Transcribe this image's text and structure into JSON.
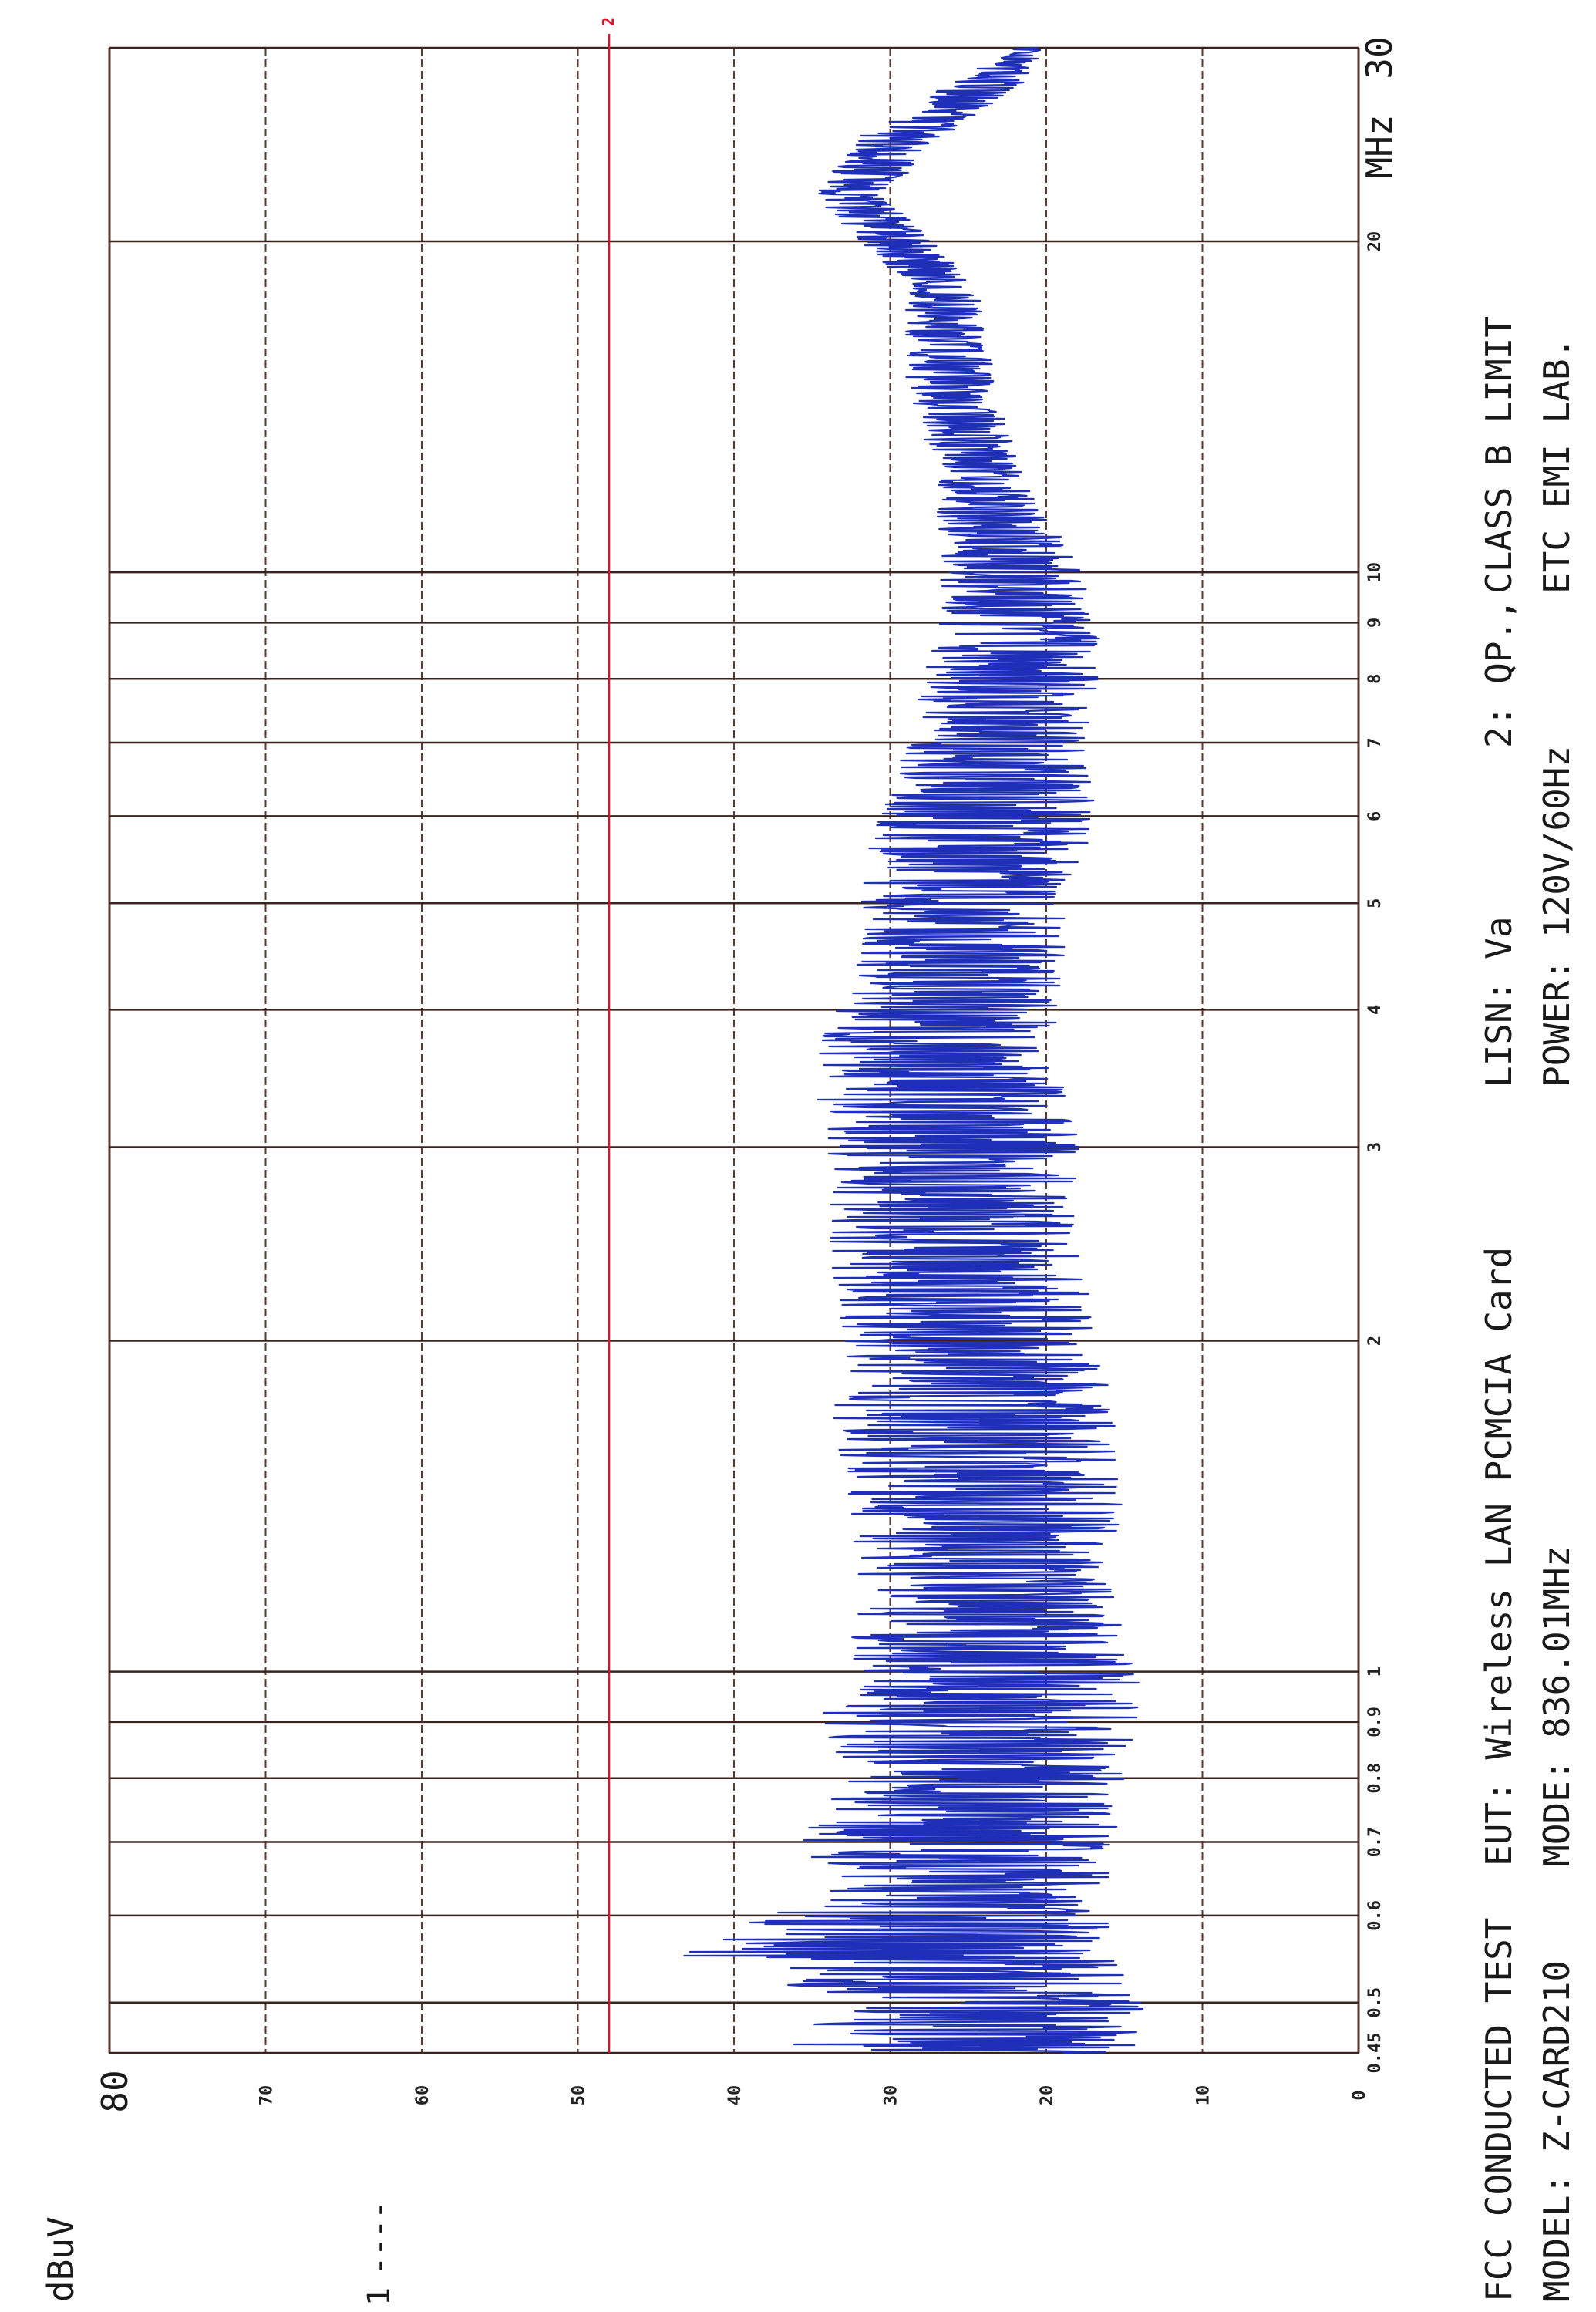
{
  "chart_data": {
    "type": "line",
    "orientation": "rotated-90-ccw",
    "ylabel": "dBuV",
    "ylabel_top": "80",
    "ylim": [
      0,
      80
    ],
    "y_ticks": [
      "0",
      "10",
      "20",
      "30",
      "40",
      "50",
      "60",
      "70"
    ],
    "xscale": "log",
    "xlim": [
      0.45,
      30
    ],
    "x_unit": "MHz",
    "x_end_label": "30",
    "x_ticks": [
      {
        "value": 0.45,
        "label": "0.45"
      },
      {
        "value": 0.5,
        "label": "0.5"
      },
      {
        "value": 0.6,
        "label": "0.6"
      },
      {
        "value": 0.7,
        "label": "0.7"
      },
      {
        "value": 0.8,
        "label": "0.8"
      },
      {
        "value": 0.9,
        "label": "0.9"
      },
      {
        "value": 1,
        "label": "1"
      },
      {
        "value": 2,
        "label": "2"
      },
      {
        "value": 3,
        "label": "3"
      },
      {
        "value": 4,
        "label": "4"
      },
      {
        "value": 5,
        "label": "5"
      },
      {
        "value": 6,
        "label": "6"
      },
      {
        "value": 7,
        "label": "7"
      },
      {
        "value": 8,
        "label": "8"
      },
      {
        "value": 9,
        "label": "9"
      },
      {
        "value": 10,
        "label": "10"
      },
      {
        "value": 20,
        "label": "20"
      }
    ],
    "grid": true,
    "limit_line": {
      "label": "2",
      "value": 48,
      "color": "#e0102a"
    },
    "trace_color": "#1f2fb8",
    "series": [
      {
        "name": "",
        "envelope": [
          {
            "x": 0.45,
            "min": 13,
            "max": 37
          },
          {
            "x": 0.48,
            "min": 12,
            "max": 35
          },
          {
            "x": 0.5,
            "min": 13,
            "max": 32
          },
          {
            "x": 0.55,
            "min": 14,
            "max": 44
          },
          {
            "x": 0.6,
            "min": 15,
            "max": 38
          },
          {
            "x": 0.65,
            "min": 15,
            "max": 34
          },
          {
            "x": 0.7,
            "min": 14,
            "max": 36
          },
          {
            "x": 0.8,
            "min": 14,
            "max": 33
          },
          {
            "x": 0.9,
            "min": 13,
            "max": 35
          },
          {
            "x": 1.0,
            "min": 13,
            "max": 33
          },
          {
            "x": 1.2,
            "min": 15,
            "max": 32
          },
          {
            "x": 1.5,
            "min": 14,
            "max": 33
          },
          {
            "x": 1.8,
            "min": 15,
            "max": 34
          },
          {
            "x": 2.0,
            "min": 16,
            "max": 33
          },
          {
            "x": 2.5,
            "min": 17,
            "max": 34
          },
          {
            "x": 3.0,
            "min": 17,
            "max": 34
          },
          {
            "x": 3.5,
            "min": 18,
            "max": 35
          },
          {
            "x": 4.0,
            "min": 18,
            "max": 34
          },
          {
            "x": 4.5,
            "min": 18,
            "max": 33
          },
          {
            "x": 5.0,
            "min": 18,
            "max": 32
          },
          {
            "x": 6.0,
            "min": 16,
            "max": 31
          },
          {
            "x": 7.0,
            "min": 17,
            "max": 29
          },
          {
            "x": 8.0,
            "min": 16,
            "max": 28
          },
          {
            "x": 9.0,
            "min": 16,
            "max": 27
          },
          {
            "x": 10.0,
            "min": 17,
            "max": 27
          },
          {
            "x": 12.0,
            "min": 21,
            "max": 27
          },
          {
            "x": 15.0,
            "min": 23,
            "max": 29
          },
          {
            "x": 18.0,
            "min": 24,
            "max": 29
          },
          {
            "x": 20.0,
            "min": 27,
            "max": 32
          },
          {
            "x": 22.0,
            "min": 30,
            "max": 35
          },
          {
            "x": 25.0,
            "min": 26,
            "max": 32
          },
          {
            "x": 28.0,
            "min": 21,
            "max": 26
          },
          {
            "x": 30.0,
            "min": 20,
            "max": 22
          }
        ]
      }
    ],
    "annotations": {
      "legend_mark": "1",
      "legend_line": "----",
      "col1_line1": "FCC CONDUCTED TEST",
      "col1_line2": "MODEL: Z-CARD210",
      "col2_line1": "EUT: Wireless LAN PCMCIA Card",
      "col2_line2": "MODE: 836.01MHz",
      "col3_line1": "LISN: Va",
      "col3_line2": "POWER: 120V/60Hz",
      "col4_line1": "2: QP.,",
      "col5_line1": "CLASS B LIMIT",
      "col5_line2": "ETC EMI LAB."
    }
  }
}
